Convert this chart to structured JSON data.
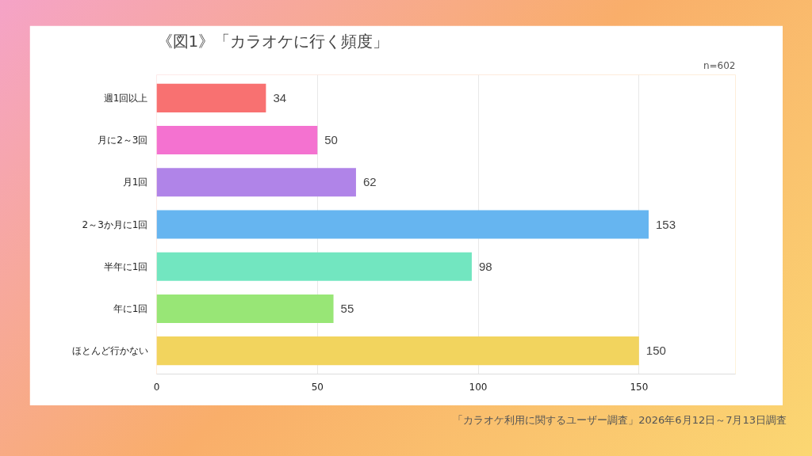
{
  "chart_data": {
    "type": "bar",
    "orientation": "horizontal",
    "title": "《図1》「カラオケに行く頻度」",
    "subtitle": "n=602",
    "categories": [
      "週1回以上",
      "月に2～3回",
      "月1回",
      "2～3か月に1回",
      "半年に1回",
      "年に1回",
      "ほとんど行かない"
    ],
    "values": [
      34,
      50,
      62,
      153,
      98,
      55,
      150
    ],
    "colors": [
      "#f87171",
      "#f472d0",
      "#b084e8",
      "#66b5f0",
      "#72e6c0",
      "#98e676",
      "#f2d45e"
    ],
    "xlim": [
      0,
      180
    ],
    "xticks": [
      0,
      50,
      100,
      150
    ],
    "grid": "x",
    "data_labels": true,
    "annotations": [
      "「カラオケ利用に関するユーザー調査」2026年6月12日～7月13日調査"
    ]
  }
}
